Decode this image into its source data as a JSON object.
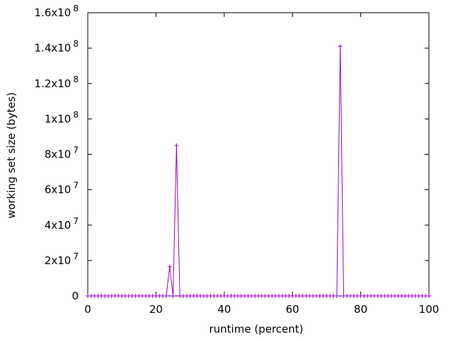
{
  "chart_data": {
    "type": "line",
    "xlabel": "runtime (percent)",
    "ylabel": "working set size (bytes)",
    "xlim": [
      0,
      100
    ],
    "ylim": [
      0,
      160000000
    ],
    "x_ticks": [
      {
        "value": 0,
        "label": "0"
      },
      {
        "value": 20,
        "label": "20"
      },
      {
        "value": 40,
        "label": "40"
      },
      {
        "value": 60,
        "label": "60"
      },
      {
        "value": 80,
        "label": "80"
      },
      {
        "value": 100,
        "label": "100"
      }
    ],
    "y_ticks": [
      {
        "value": 0,
        "mantissa": "0",
        "exponent": ""
      },
      {
        "value": 20000000,
        "mantissa": "2x10",
        "exponent": "7"
      },
      {
        "value": 40000000,
        "mantissa": "4x10",
        "exponent": "7"
      },
      {
        "value": 60000000,
        "mantissa": "6x10",
        "exponent": "7"
      },
      {
        "value": 80000000,
        "mantissa": "8x10",
        "exponent": "7"
      },
      {
        "value": 100000000,
        "mantissa": "1x10",
        "exponent": "8"
      },
      {
        "value": 120000000,
        "mantissa": "1.2x10",
        "exponent": "8"
      },
      {
        "value": 140000000,
        "mantissa": "1.4x10",
        "exponent": "8"
      },
      {
        "value": 160000000,
        "mantissa": "1.6x10",
        "exponent": "8"
      }
    ],
    "series_color": "#9400d3",
    "grid": false,
    "point_marker": "+",
    "series": [
      {
        "x_start": 0,
        "x_step": 1,
        "x_count": 101,
        "nonzero_points": [
          {
            "x": 24,
            "y": 16500000
          },
          {
            "x": 26,
            "y": 85000000
          },
          {
            "x": 74,
            "y": 141000000
          }
        ]
      }
    ]
  }
}
